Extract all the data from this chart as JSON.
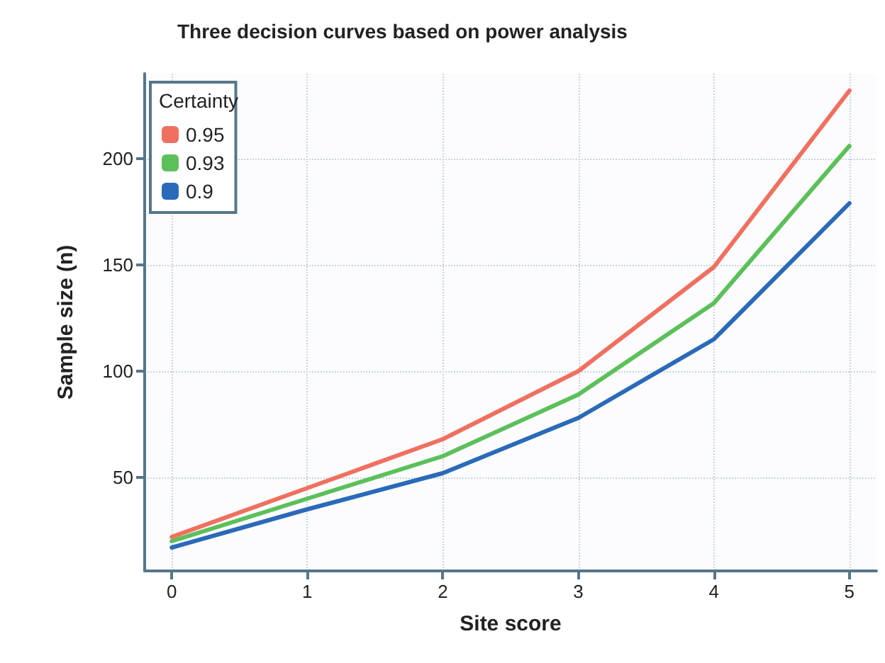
{
  "chart_data": {
    "type": "line",
    "title": "Three decision curves based on power analysis",
    "xlabel": "Site score",
    "ylabel": "Sample size (n)",
    "legend_title": "Certainty",
    "x": [
      0,
      1,
      2,
      3,
      4,
      5
    ],
    "series": [
      {
        "name": "0.95",
        "color": "#f07060",
        "values": [
          22,
          45,
          68,
          100,
          149,
          232
        ]
      },
      {
        "name": "0.93",
        "color": "#5cc05a",
        "values": [
          20,
          40,
          60,
          89,
          132,
          206
        ]
      },
      {
        "name": "0.9",
        "color": "#2a6ab8",
        "values": [
          17,
          35,
          52,
          78,
          115,
          179
        ]
      }
    ],
    "xlim": [
      -0.2,
      5.2
    ],
    "xticks": [
      0,
      1,
      2,
      3,
      4,
      5
    ],
    "ylim": [
      6,
      240
    ],
    "yticks": [
      50,
      100,
      150,
      200
    ],
    "grid": true,
    "legend": "top left",
    "marker": "none",
    "line_style": "solid"
  }
}
